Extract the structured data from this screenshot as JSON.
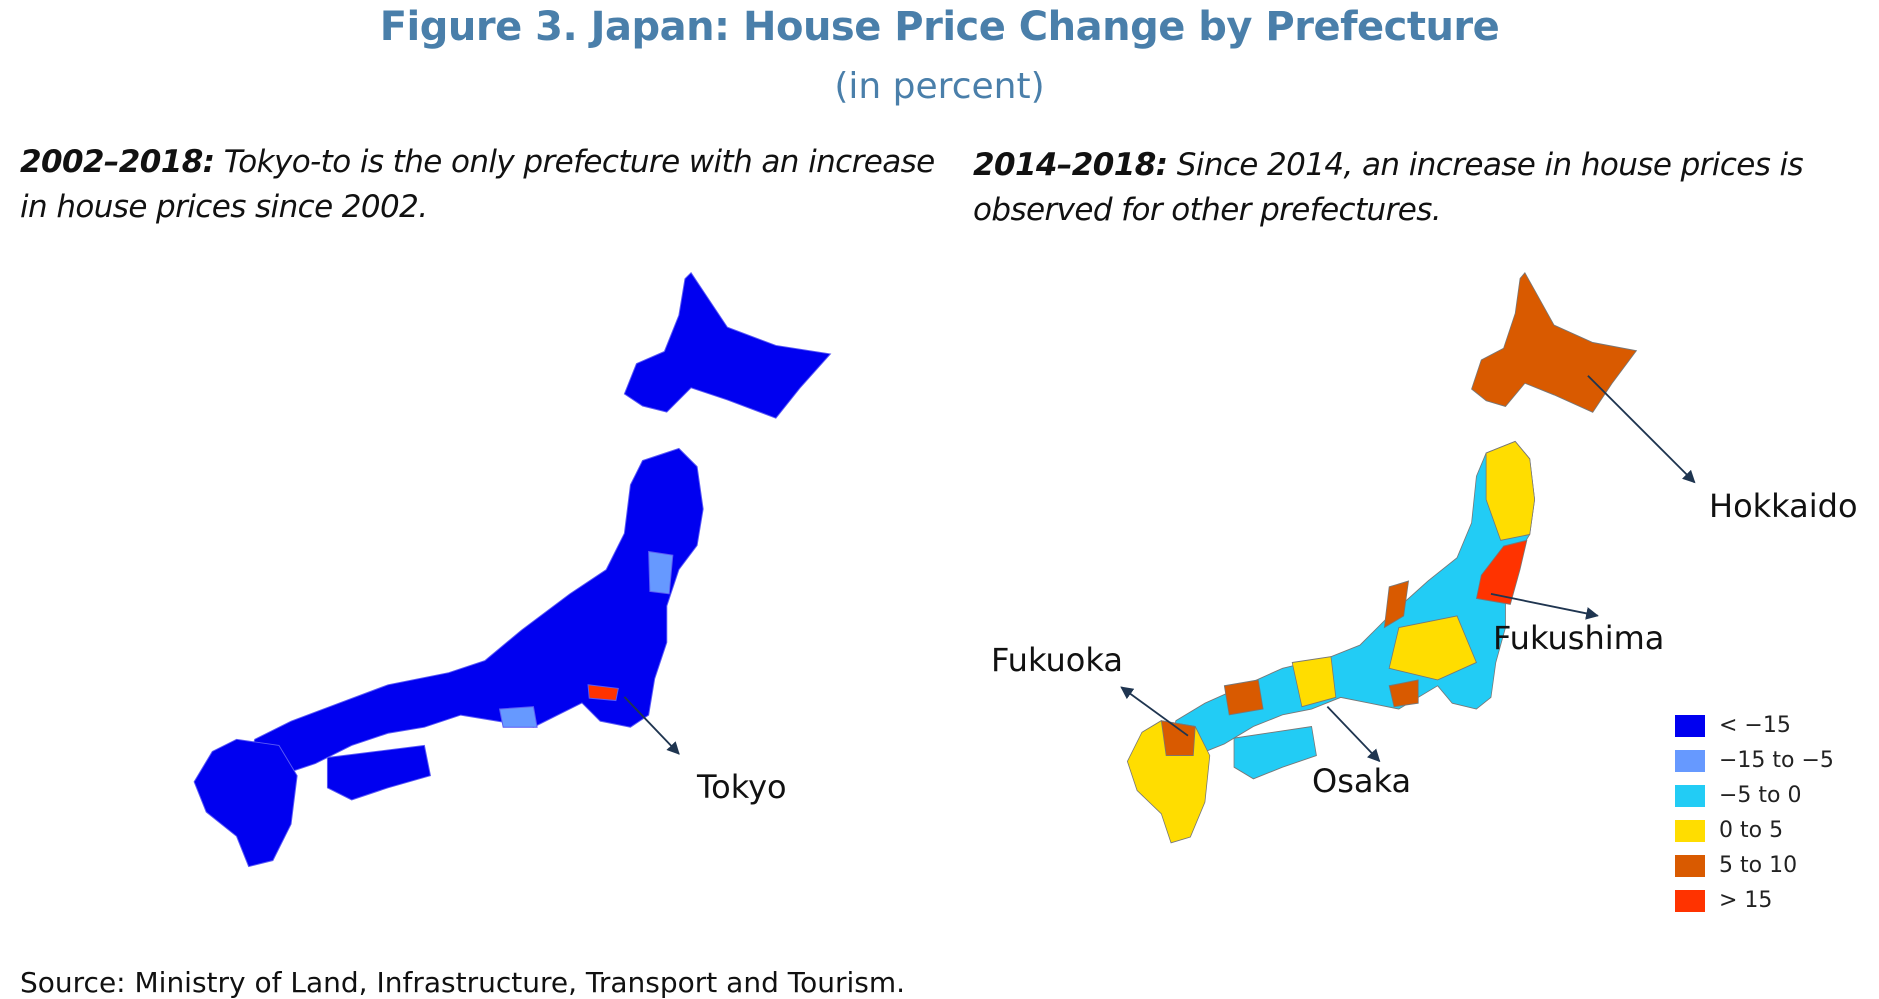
{
  "title": "Figure 3. Japan: House Price Change by Prefecture",
  "subtitle": "(in percent)",
  "left_panel": {
    "period": "2002–2018:",
    "caption_line1": " Tokyo-to is the only prefecture with an increase",
    "caption_line2": "in house prices since 2002.",
    "labels": {
      "tokyo": "Tokyo"
    }
  },
  "right_panel": {
    "period": "2014–2018:",
    "caption_line1": " Since 2014, an increase in house prices is",
    "caption_line2": "observed for other prefectures.",
    "labels": {
      "hokkaido": "Hokkaido",
      "fukushima": "Fukushima",
      "fukuoka": "Fukuoka",
      "osaka": "Osaka"
    }
  },
  "legend": [
    {
      "label": "< −15",
      "color": "#0000f0"
    },
    {
      "label": "−15 to −5",
      "color": "#6699ff"
    },
    {
      "label": "−5 to 0",
      "color": "#22ccf5"
    },
    {
      "label": "0 to 5",
      "color": "#ffdd00"
    },
    {
      "label": "5 to 10",
      "color": "#d95a00"
    },
    {
      "label": "> 15",
      "color": "#ff3300"
    }
  ],
  "source": "Source: Ministry of Land, Infrastructure, Transport and Tourism."
}
